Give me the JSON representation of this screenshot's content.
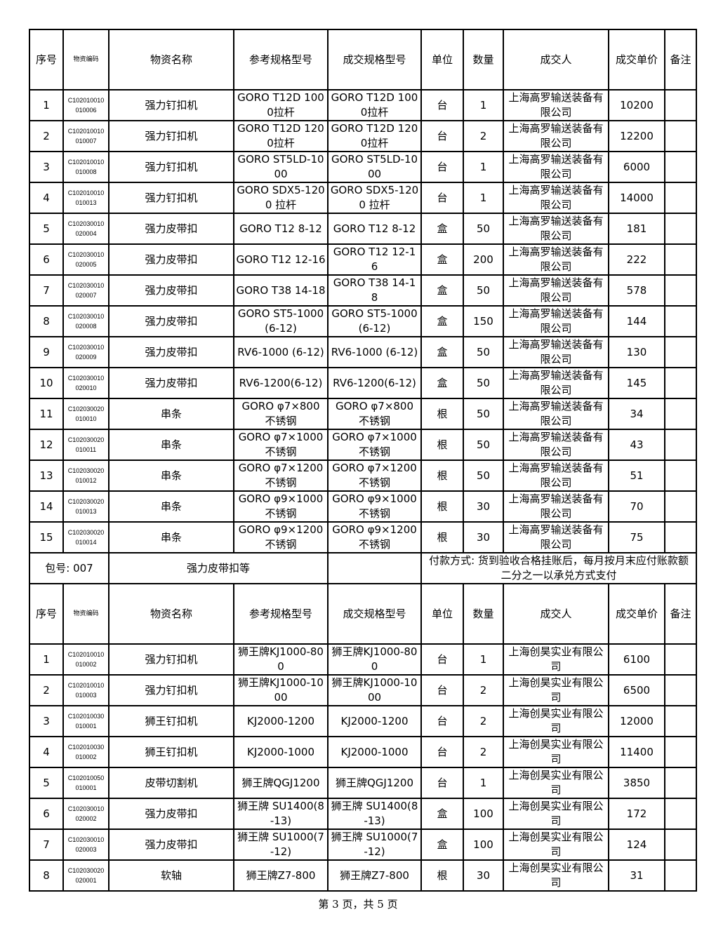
{
  "headers": {
    "seq": "序号",
    "code": "物资编码",
    "name": "物资名称",
    "ref_spec": "参考规格型号",
    "deal_spec": "成交规格型号",
    "unit": "单位",
    "qty": "数量",
    "winner": "成交人",
    "price": "成交单价",
    "note": "备注"
  },
  "section1": {
    "rows": [
      [
        "1",
        "C102010010010006",
        "强力钉扣机",
        "GORO T12D 1000拉杆",
        "GORO T12D 1000拉杆",
        "台",
        "1",
        "上海高罗输送装备有限公司",
        "10200",
        ""
      ],
      [
        "2",
        "C102010010010007",
        "强力钉扣机",
        "GORO T12D 1200拉杆",
        "GORO T12D 1200拉杆",
        "台",
        "2",
        "上海高罗输送装备有限公司",
        "12200",
        ""
      ],
      [
        "3",
        "C102010010010008",
        "强力钉扣机",
        "GORO ST5LD-1000",
        "GORO ST5LD-1000",
        "台",
        "1",
        "上海高罗输送装备有限公司",
        "6000",
        ""
      ],
      [
        "4",
        "C102010010010013",
        "强力钉扣机",
        "GORO SDX5-1200 拉杆",
        "GORO SDX5-1200 拉杆",
        "台",
        "1",
        "上海高罗输送装备有限公司",
        "14000",
        ""
      ],
      [
        "5",
        "C102030010020004",
        "强力皮带扣",
        "GORO T12 8-12",
        "GORO T12 8-12",
        "盒",
        "50",
        "上海高罗输送装备有限公司",
        "181",
        ""
      ],
      [
        "6",
        "C102030010020005",
        "强力皮带扣",
        "GORO T12 12-16",
        "GORO T12 12-16",
        "盒",
        "200",
        "上海高罗输送装备有限公司",
        "222",
        ""
      ],
      [
        "7",
        "C102030010020007",
        "强力皮带扣",
        "GORO T38 14-18",
        "GORO T38 14-18",
        "盒",
        "50",
        "上海高罗输送装备有限公司",
        "578",
        ""
      ],
      [
        "8",
        "C102030010020008",
        "强力皮带扣",
        "GORO ST5-1000(6-12)",
        "GORO ST5-1000(6-12)",
        "盒",
        "150",
        "上海高罗输送装备有限公司",
        "144",
        ""
      ],
      [
        "9",
        "C102030010020009",
        "强力皮带扣",
        "RV6-1000 (6-12)",
        "RV6-1000 (6-12)",
        "盒",
        "50",
        "上海高罗输送装备有限公司",
        "130",
        ""
      ],
      [
        "10",
        "C102030010020010",
        "强力皮带扣",
        "RV6-1200(6-12)",
        "RV6-1200(6-12)",
        "盒",
        "50",
        "上海高罗输送装备有限公司",
        "145",
        ""
      ],
      [
        "11",
        "C102030020010010",
        "串条",
        "GORO φ7×800 不锈钢",
        "GORO φ7×800 不锈钢",
        "根",
        "50",
        "上海高罗输送装备有限公司",
        "34",
        ""
      ],
      [
        "12",
        "C102030020010011",
        "串条",
        "GORO φ7×1000 不锈钢",
        "GORO φ7×1000 不锈钢",
        "根",
        "50",
        "上海高罗输送装备有限公司",
        "43",
        ""
      ],
      [
        "13",
        "C102030020010012",
        "串条",
        "GORO φ7×1200 不锈钢",
        "GORO φ7×1200 不锈钢",
        "根",
        "50",
        "上海高罗输送装备有限公司",
        "51",
        ""
      ],
      [
        "14",
        "C102030020010013",
        "串条",
        "GORO φ9×1000 不锈钢",
        "GORO φ9×1000 不锈钢",
        "根",
        "30",
        "上海高罗输送装备有限公司",
        "70",
        ""
      ],
      [
        "15",
        "C102030020010014",
        "串条",
        "GORO φ9×1200 不锈钢",
        "GORO φ9×1200 不锈钢",
        "根",
        "30",
        "上海高罗输送装备有限公司",
        "75",
        ""
      ]
    ]
  },
  "package": {
    "number": "包号: 007",
    "name": "强力皮带扣等",
    "blank": "",
    "payment": "付款方式: 货到验收合格挂账后，每月按月末应付账款额二分之一以承兑方式支付"
  },
  "section2": {
    "rows": [
      [
        "1",
        "C102010010010002",
        "强力钉扣机",
        "狮王牌KJ1000-800",
        "狮王牌KJ1000-800",
        "台",
        "1",
        "上海创昊实业有限公司",
        "6100",
        ""
      ],
      [
        "2",
        "C102010010010003",
        "强力钉扣机",
        "狮王牌KJ1000-1000",
        "狮王牌KJ1000-1000",
        "台",
        "2",
        "上海创昊实业有限公司",
        "6500",
        ""
      ],
      [
        "3",
        "C102010030010001",
        "狮王钉扣机",
        "KJ2000-1200",
        "KJ2000-1200",
        "台",
        "2",
        "上海创昊实业有限公司",
        "12000",
        ""
      ],
      [
        "4",
        "C102010030010002",
        "狮王钉扣机",
        "KJ2000-1000",
        "KJ2000-1000",
        "台",
        "2",
        "上海创昊实业有限公司",
        "11400",
        ""
      ],
      [
        "5",
        "C102010050010001",
        "皮带切割机",
        "狮王牌QGJ1200",
        "狮王牌QGJ1200",
        "台",
        "1",
        "上海创昊实业有限公司",
        "3850",
        ""
      ],
      [
        "6",
        "C102030010020002",
        "强力皮带扣",
        "狮王牌 SU1400(8-13)",
        "狮王牌 SU1400(8-13)",
        "盒",
        "100",
        "上海创昊实业有限公司",
        "172",
        ""
      ],
      [
        "7",
        "C102030010020003",
        "强力皮带扣",
        "狮王牌 SU1000(7-12)",
        "狮王牌 SU1000(7-12)",
        "盒",
        "100",
        "上海创昊实业有限公司",
        "124",
        ""
      ],
      [
        "8",
        "C102030020020001",
        "软轴",
        "狮王牌Z7-800",
        "狮王牌Z7-800",
        "根",
        "30",
        "上海创昊实业有限公司",
        "31",
        ""
      ]
    ]
  },
  "footer": {
    "page": "第 3 页，共 5 页"
  }
}
